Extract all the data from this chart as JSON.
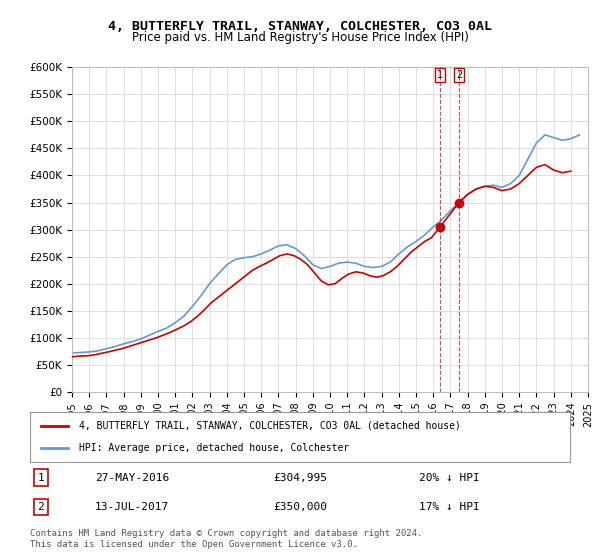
{
  "title": "4, BUTTERFLY TRAIL, STANWAY, COLCHESTER, CO3 0AL",
  "subtitle": "Price paid vs. HM Land Registry's House Price Index (HPI)",
  "ylabel_ticks": [
    "£0",
    "£50K",
    "£100K",
    "£150K",
    "£200K",
    "£250K",
    "£300K",
    "£350K",
    "£400K",
    "£450K",
    "£500K",
    "£550K",
    "£600K"
  ],
  "ytick_vals": [
    0,
    50000,
    100000,
    150000,
    200000,
    250000,
    300000,
    350000,
    400000,
    450000,
    500000,
    550000,
    600000
  ],
  "xmin": 1995,
  "xmax": 2025,
  "ymin": 0,
  "ymax": 600000,
  "transaction1": {
    "label": "1",
    "date": "27-MAY-2016",
    "price": 304995,
    "pct": "20% ↓ HPI",
    "x": 2016.4
  },
  "transaction2": {
    "label": "2",
    "date": "13-JUL-2017",
    "price": 350000,
    "pct": "17% ↓ HPI",
    "x": 2017.5
  },
  "legend_line1": "4, BUTTERFLY TRAIL, STANWAY, COLCHESTER, CO3 0AL (detached house)",
  "legend_line2": "HPI: Average price, detached house, Colchester",
  "footer": "Contains HM Land Registry data © Crown copyright and database right 2024.\nThis data is licensed under the Open Government Licence v3.0.",
  "line_color_red": "#cc0000",
  "line_color_blue": "#6699cc",
  "background_color": "#ffffff",
  "hpi_data_x": [
    1995,
    1995.5,
    1996,
    1996.5,
    1997,
    1997.5,
    1998,
    1998.5,
    1999,
    1999.5,
    2000,
    2000.5,
    2001,
    2001.5,
    2002,
    2002.5,
    2003,
    2003.5,
    2004,
    2004.5,
    2005,
    2005.5,
    2006,
    2006.5,
    2007,
    2007.5,
    2008,
    2008.5,
    2009,
    2009.5,
    2010,
    2010.5,
    2011,
    2011.5,
    2012,
    2012.5,
    2013,
    2013.5,
    2014,
    2014.5,
    2015,
    2015.5,
    2016,
    2016.5,
    2017,
    2017.5,
    2018,
    2018.5,
    2019,
    2019.5,
    2020,
    2020.5,
    2021,
    2021.5,
    2022,
    2022.5,
    2023,
    2023.5,
    2024,
    2024.5
  ],
  "hpi_data_y": [
    72000,
    73000,
    74000,
    76000,
    80000,
    84000,
    89000,
    93000,
    98000,
    105000,
    112000,
    118000,
    128000,
    140000,
    158000,
    178000,
    200000,
    218000,
    235000,
    245000,
    248000,
    250000,
    255000,
    262000,
    270000,
    272000,
    265000,
    252000,
    235000,
    228000,
    232000,
    238000,
    240000,
    238000,
    232000,
    230000,
    232000,
    240000,
    255000,
    268000,
    278000,
    290000,
    305000,
    318000,
    335000,
    350000,
    365000,
    375000,
    380000,
    382000,
    378000,
    385000,
    400000,
    430000,
    460000,
    475000,
    470000,
    465000,
    468000,
    475000
  ],
  "price_data_x": [
    1995,
    1995.3,
    1995.6,
    1995.9,
    1996.2,
    1996.5,
    1996.8,
    1997.1,
    1997.5,
    1997.9,
    1998.3,
    1998.7,
    1999.1,
    1999.5,
    1999.9,
    2000.3,
    2000.7,
    2001.1,
    2001.5,
    2001.9,
    2002.3,
    2002.7,
    2003.1,
    2003.5,
    2003.9,
    2004.3,
    2004.7,
    2005.1,
    2005.5,
    2005.9,
    2006.3,
    2006.7,
    2007.1,
    2007.5,
    2007.9,
    2008.3,
    2008.7,
    2009.1,
    2009.5,
    2009.9,
    2010.3,
    2010.7,
    2011.1,
    2011.5,
    2011.9,
    2012.3,
    2012.7,
    2013.1,
    2013.5,
    2013.9,
    2014.3,
    2014.7,
    2015.1,
    2015.5,
    2015.9,
    2016.4,
    2017.5,
    2018.0,
    2018.5,
    2019.0,
    2019.5,
    2020.0,
    2020.5,
    2021.0,
    2021.5,
    2022.0,
    2022.5,
    2023.0,
    2023.5,
    2024.0
  ],
  "price_data_y": [
    65000,
    66000,
    66500,
    67000,
    68000,
    70000,
    72000,
    74000,
    77000,
    80000,
    84000,
    88000,
    92000,
    96000,
    100000,
    105000,
    110000,
    116000,
    122000,
    130000,
    140000,
    152000,
    165000,
    175000,
    185000,
    195000,
    205000,
    215000,
    225000,
    232000,
    238000,
    245000,
    252000,
    255000,
    252000,
    245000,
    235000,
    220000,
    205000,
    198000,
    200000,
    210000,
    218000,
    222000,
    220000,
    215000,
    212000,
    215000,
    222000,
    232000,
    245000,
    258000,
    268000,
    278000,
    285000,
    304995,
    350000,
    365000,
    375000,
    380000,
    378000,
    372000,
    375000,
    385000,
    400000,
    415000,
    420000,
    410000,
    405000,
    408000
  ]
}
